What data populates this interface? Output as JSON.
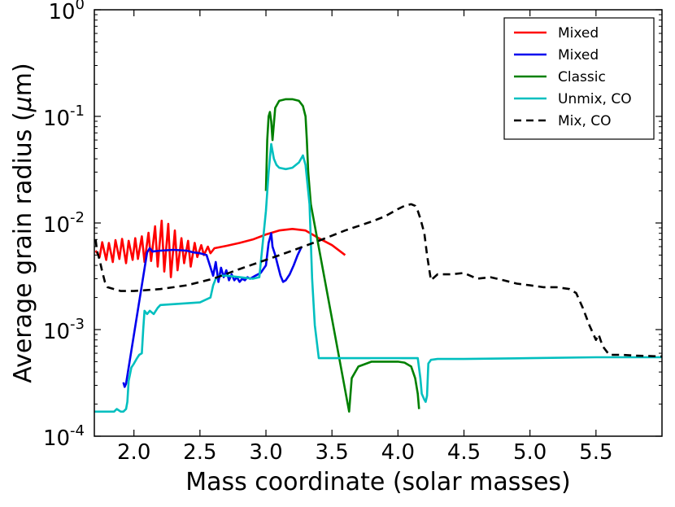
{
  "chart_data": {
    "type": "line",
    "xlabel": "Mass coordinate (solar masses)",
    "ylabel_prefix": "Average grain radius (",
    "ylabel_mu": "μ",
    "ylabel_suffix": "m)",
    "xlim": [
      1.7,
      6.0
    ],
    "ylim": [
      0.0001,
      1.0
    ],
    "yscale": "log",
    "xticks": [
      2.0,
      2.5,
      3.0,
      3.5,
      4.0,
      4.5,
      5.0,
      5.5
    ],
    "xtick_labels": [
      "2.0",
      "2.5",
      "3.0",
      "3.5",
      "4.0",
      "4.5",
      "5.0",
      "5.5"
    ],
    "yticks": [
      {
        "value": 0.0001,
        "base": "10",
        "exp": "-4"
      },
      {
        "value": 0.001,
        "base": "10",
        "exp": "-3"
      },
      {
        "value": 0.01,
        "base": "10",
        "exp": "-2"
      },
      {
        "value": 0.1,
        "base": "10",
        "exp": "-1"
      },
      {
        "value": 1.0,
        "base": "10",
        "exp": "0"
      }
    ],
    "legend_position": "top-right",
    "series": [
      {
        "name": "Mixed",
        "color": "#ff0000",
        "dash": "solid",
        "x": [
          1.71,
          1.74,
          1.76,
          1.79,
          1.81,
          1.84,
          1.86,
          1.89,
          1.91,
          1.94,
          1.96,
          1.99,
          2.01,
          2.03,
          2.06,
          2.08,
          2.11,
          2.13,
          2.16,
          2.18,
          2.21,
          2.23,
          2.26,
          2.28,
          2.31,
          2.33,
          2.36,
          2.38,
          2.41,
          2.43,
          2.46,
          2.48,
          2.51,
          2.53,
          2.56,
          2.58,
          2.61,
          2.7,
          2.8,
          2.9,
          3.0,
          3.1,
          3.2,
          3.3,
          3.4,
          3.5,
          3.6
        ],
        "y": [
          0.0055,
          0.0048,
          0.0066,
          0.0045,
          0.0065,
          0.0043,
          0.0069,
          0.0046,
          0.0071,
          0.0042,
          0.0068,
          0.0045,
          0.0072,
          0.0046,
          0.0075,
          0.0043,
          0.0081,
          0.0044,
          0.0093,
          0.0039,
          0.0105,
          0.0035,
          0.0098,
          0.0031,
          0.0085,
          0.0036,
          0.0072,
          0.0042,
          0.0068,
          0.0039,
          0.0065,
          0.0048,
          0.0062,
          0.005,
          0.006,
          0.0052,
          0.0058,
          0.0061,
          0.0065,
          0.007,
          0.0078,
          0.0085,
          0.0088,
          0.0085,
          0.0072,
          0.0062,
          0.005
        ]
      },
      {
        "name": "Mixed",
        "color": "#0000ee",
        "dash": "solid",
        "x": [
          1.92,
          1.93,
          1.94,
          2.1,
          2.12,
          2.14,
          2.2,
          2.3,
          2.4,
          2.45,
          2.5,
          2.55,
          2.6,
          2.62,
          2.64,
          2.66,
          2.68,
          2.7,
          2.72,
          2.74,
          2.76,
          2.78,
          2.8,
          2.82,
          2.84,
          2.86,
          2.88,
          2.92,
          2.96,
          3.0,
          3.02,
          3.04,
          3.05,
          3.07,
          3.09,
          3.11,
          3.13,
          3.15,
          3.18,
          3.21,
          3.24,
          3.27
        ],
        "y": [
          0.00032,
          0.00029,
          0.00031,
          0.0053,
          0.0058,
          0.0054,
          0.0055,
          0.0056,
          0.0055,
          0.0053,
          0.0052,
          0.005,
          0.0032,
          0.0043,
          0.0028,
          0.0038,
          0.0031,
          0.0036,
          0.0029,
          0.0033,
          0.0029,
          0.0031,
          0.0028,
          0.003,
          0.0029,
          0.0031,
          0.003,
          0.0032,
          0.0034,
          0.004,
          0.0065,
          0.008,
          0.006,
          0.005,
          0.004,
          0.0032,
          0.0028,
          0.0029,
          0.0033,
          0.004,
          0.005,
          0.006
        ]
      },
      {
        "name": "Classic",
        "color": "#008000",
        "dash": "solid",
        "x": [
          3.0,
          3.01,
          3.02,
          3.03,
          3.04,
          3.05,
          3.07,
          3.1,
          3.15,
          3.2,
          3.25,
          3.28,
          3.3,
          3.31,
          3.32,
          3.34,
          3.63,
          3.65,
          3.7,
          3.8,
          3.9,
          4.0,
          4.05,
          4.1,
          4.13,
          4.15,
          4.16
        ],
        "y": [
          0.02,
          0.06,
          0.1,
          0.11,
          0.09,
          0.06,
          0.12,
          0.14,
          0.145,
          0.145,
          0.14,
          0.125,
          0.1,
          0.06,
          0.03,
          0.015,
          0.00017,
          0.00035,
          0.00045,
          0.0005,
          0.0005,
          0.0005,
          0.00049,
          0.00045,
          0.00035,
          0.00025,
          0.00018
        ]
      },
      {
        "name": "Unmix, CO",
        "color": "#00bfbf",
        "dash": "solid",
        "x": [
          1.7,
          1.8,
          1.85,
          1.87,
          1.9,
          1.92,
          1.94,
          1.95,
          1.96,
          1.98,
          2.0,
          2.02,
          2.04,
          2.06,
          2.07,
          2.08,
          2.1,
          2.12,
          2.15,
          2.18,
          2.2,
          2.5,
          2.58,
          2.6,
          2.62,
          2.65,
          2.7,
          2.8,
          2.9,
          2.95,
          3.0,
          3.02,
          3.04,
          3.06,
          3.08,
          3.1,
          3.15,
          3.2,
          3.25,
          3.28,
          3.3,
          3.33,
          3.35,
          3.37,
          3.4,
          3.6,
          3.8,
          4.0,
          4.1,
          4.15,
          4.17,
          4.18,
          4.2,
          4.21,
          4.22,
          4.23,
          4.25,
          4.3,
          4.5,
          5.0,
          5.5,
          6.0
        ],
        "y": [
          0.00017,
          0.00017,
          0.00017,
          0.00018,
          0.00017,
          0.00017,
          0.00018,
          0.00021,
          0.00033,
          0.00044,
          0.00048,
          0.00053,
          0.00058,
          0.0006,
          0.001,
          0.0015,
          0.0014,
          0.0015,
          0.0014,
          0.0016,
          0.0017,
          0.0018,
          0.002,
          0.0026,
          0.003,
          0.0032,
          0.0032,
          0.0031,
          0.003,
          0.0031,
          0.013,
          0.03,
          0.055,
          0.04,
          0.035,
          0.033,
          0.032,
          0.033,
          0.037,
          0.043,
          0.035,
          0.015,
          0.003,
          0.0011,
          0.00054,
          0.00054,
          0.00054,
          0.00054,
          0.00054,
          0.00054,
          0.00035,
          0.00025,
          0.00022,
          0.00021,
          0.00024,
          0.00048,
          0.00052,
          0.00053,
          0.00053,
          0.00054,
          0.00055,
          0.00055
        ]
      },
      {
        "name": "Mix, CO",
        "color": "#000000",
        "dash": "dashed",
        "x": [
          1.71,
          1.72,
          1.74,
          1.76,
          1.78,
          1.8,
          1.9,
          2.0,
          2.2,
          2.4,
          2.6,
          2.8,
          3.0,
          3.2,
          3.4,
          3.6,
          3.8,
          3.9,
          4.0,
          4.05,
          4.1,
          4.13,
          4.15,
          4.17,
          4.2,
          4.22,
          4.25,
          4.3,
          4.4,
          4.5,
          4.6,
          4.7,
          4.8,
          4.9,
          5.0,
          5.1,
          5.2,
          5.3,
          5.35,
          5.4,
          5.45,
          5.5,
          5.52,
          5.55,
          5.6,
          5.7,
          5.8,
          6.0
        ],
        "y": [
          0.007,
          0.0055,
          0.0045,
          0.0035,
          0.0028,
          0.0025,
          0.0023,
          0.0023,
          0.0024,
          0.0026,
          0.003,
          0.0037,
          0.0045,
          0.0055,
          0.0068,
          0.0085,
          0.0103,
          0.0115,
          0.0135,
          0.0145,
          0.015,
          0.0145,
          0.013,
          0.011,
          0.008,
          0.005,
          0.0029,
          0.0033,
          0.0033,
          0.0034,
          0.003,
          0.0031,
          0.0029,
          0.0027,
          0.0026,
          0.0025,
          0.0025,
          0.0024,
          0.0022,
          0.0016,
          0.0011,
          0.0008,
          0.0009,
          0.0007,
          0.00058,
          0.00058,
          0.00057,
          0.00056
        ]
      }
    ]
  }
}
